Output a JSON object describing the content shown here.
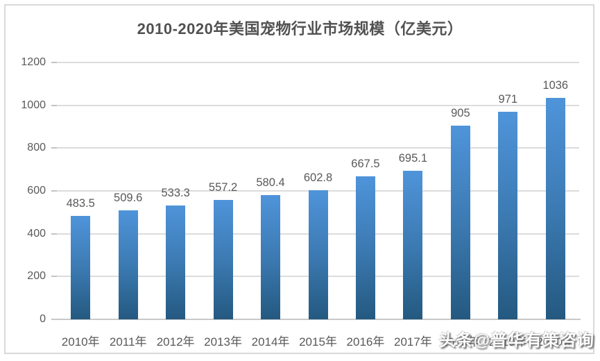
{
  "chart": {
    "title": "2010-2020年美国宠物行业市场规模（亿美元）"
  },
  "chart_data": {
    "type": "bar",
    "title": "2010-2020年美国宠物行业市场规模（亿美元）",
    "categories": [
      "2010年",
      "2011年",
      "2012年",
      "2013年",
      "2014年",
      "2015年",
      "2016年",
      "2017年",
      "2018年",
      "2019年",
      "2020年"
    ],
    "values": [
      483.5,
      509.6,
      533.3,
      557.2,
      580.4,
      602.8,
      667.5,
      695.1,
      905,
      971,
      1036
    ],
    "data_labels": [
      "483.5",
      "509.6",
      "533.3",
      "557.2",
      "580.4",
      "602.8",
      "667.5",
      "695.1",
      "905",
      "971",
      "1036"
    ],
    "xlabel": "",
    "ylabel": "",
    "ylim": [
      0,
      1200
    ],
    "yticks": [
      0,
      200,
      400,
      600,
      800,
      1000,
      1200
    ],
    "grid": true,
    "legend": "none"
  },
  "watermark": {
    "text": "头条@普华有策咨询"
  },
  "colors": {
    "bar_gradient_top": "#4f94da",
    "bar_gradient_mid": "#3b79b1",
    "bar_gradient_bottom": "#245980",
    "gridline": "#dcdcdc",
    "axis_line": "#c9c9c9",
    "axis_text": "#595959",
    "title_text": "#515151",
    "frame_border": "#d9d9d9",
    "watermark_text": "#fdfdfd"
  }
}
